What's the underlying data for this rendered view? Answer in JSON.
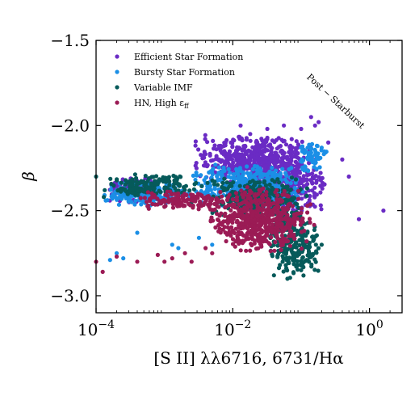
{
  "chart_data": {
    "type": "scatter",
    "xlabel": "[S II] λλ6716, 6731/Hα",
    "ylabel": "β",
    "xscale": "log",
    "xlim": [
      0.0001,
      3
    ],
    "ylim": [
      -3.1,
      -1.5
    ],
    "x_ticks": [
      {
        "value": 0.0001,
        "base": "10",
        "exp": "−4"
      },
      {
        "value": 0.01,
        "base": "10",
        "exp": "−2"
      },
      {
        "value": 1,
        "base": "10",
        "exp": "0"
      }
    ],
    "y_ticks": [
      {
        "value": -1.5,
        "label": "−1.5"
      },
      {
        "value": -2.0,
        "label": "−2.0"
      },
      {
        "value": -2.5,
        "label": "−2.5"
      },
      {
        "value": -3.0,
        "label": "−3.0"
      }
    ],
    "legend_position": "top-left",
    "grid": false,
    "annotation": {
      "text": "Post − Starburst",
      "x": 0.3,
      "y": -1.87
    },
    "series": [
      {
        "name": "Efficient Star Formation",
        "legend_label": "Efficient Star Formation",
        "color": "#6a2bc4",
        "clusters": [
          {
            "x_log": [
              -3.9,
              -3.0
            ],
            "y": [
              -2.46,
              -2.3
            ],
            "n": 110
          },
          {
            "x_log": [
              -2.6,
              -0.8
            ],
            "y": [
              -2.35,
              -2.05
            ],
            "n": 520
          },
          {
            "x_log": [
              -1.7,
              -0.6
            ],
            "y": [
              -2.55,
              -2.15
            ],
            "n": 260
          }
        ],
        "points": [
          {
            "x": 0.0063,
            "y": -2.12
          },
          {
            "x": 0.013,
            "y": -2.0
          },
          {
            "x": 0.018,
            "y": -2.05
          },
          {
            "x": 0.032,
            "y": -2.02
          },
          {
            "x": 0.056,
            "y": -2.0
          },
          {
            "x": 0.1,
            "y": -2.02
          },
          {
            "x": 0.14,
            "y": -1.95
          },
          {
            "x": 0.16,
            "y": -2.0
          },
          {
            "x": 0.18,
            "y": -1.98
          },
          {
            "x": 0.25,
            "y": -2.1
          },
          {
            "x": 0.4,
            "y": -2.2
          },
          {
            "x": 0.5,
            "y": -2.3
          },
          {
            "x": 1.6,
            "y": -2.5
          },
          {
            "x": 0.7,
            "y": -2.55
          }
        ]
      },
      {
        "name": "Bursty Star Formation",
        "legend_label": "Bursty Star Formation",
        "color": "#1b8fe6",
        "clusters": [
          {
            "x_log": [
              -3.9,
              -2.6
            ],
            "y": [
              -2.48,
              -2.32
            ],
            "n": 200
          },
          {
            "x_log": [
              -2.6,
              -0.9
            ],
            "y": [
              -2.5,
              -2.22
            ],
            "n": 480
          },
          {
            "x_log": [
              -1.1,
              -0.6
            ],
            "y": [
              -2.28,
              -2.08
            ],
            "n": 60
          }
        ],
        "points": [
          {
            "x": 0.00016,
            "y": -2.79
          },
          {
            "x": 0.0002,
            "y": -2.75
          },
          {
            "x": 0.00025,
            "y": -2.78
          },
          {
            "x": 0.0004,
            "y": -2.63
          },
          {
            "x": 0.0013,
            "y": -2.7
          },
          {
            "x": 0.0016,
            "y": -2.72
          },
          {
            "x": 0.0032,
            "y": -2.66
          },
          {
            "x": 0.005,
            "y": -2.7
          },
          {
            "x": 0.1,
            "y": -2.13
          },
          {
            "x": 0.14,
            "y": -2.14
          },
          {
            "x": 0.2,
            "y": -2.13
          }
        ]
      },
      {
        "name": "Variable IMF",
        "legend_label": "Variable IMF",
        "color": "#065a5a",
        "clusters": [
          {
            "x_log": [
              -3.9,
              -2.4
            ],
            "y": [
              -2.42,
              -2.28
            ],
            "n": 160
          },
          {
            "x_log": [
              -2.4,
              -0.9
            ],
            "y": [
              -2.55,
              -2.3
            ],
            "n": 300
          },
          {
            "x_log": [
              -1.5,
              -0.7
            ],
            "y": [
              -2.9,
              -2.5
            ],
            "n": 240
          }
        ],
        "points": [
          {
            "x": 0.0001,
            "y": -2.3
          },
          {
            "x": 0.00013,
            "y": -2.42
          },
          {
            "x": 0.0025,
            "y": -2.45
          },
          {
            "x": 0.04,
            "y": -2.88
          },
          {
            "x": 0.063,
            "y": -2.9
          },
          {
            "x": 0.1,
            "y": -2.85
          },
          {
            "x": 0.13,
            "y": -2.8
          },
          {
            "x": 0.2,
            "y": -2.7
          }
        ]
      },
      {
        "name": "HN, High ε_ff",
        "legend_label": "HN, High ε",
        "legend_sub": "ff",
        "color": "#9b1b55",
        "clusters": [
          {
            "x_log": [
              -3.5,
              -2.0
            ],
            "y": [
              -2.5,
              -2.38
            ],
            "n": 140
          },
          {
            "x_log": [
              -2.4,
              -0.8
            ],
            "y": [
              -2.75,
              -2.35
            ],
            "n": 560
          }
        ],
        "points": [
          {
            "x": 0.0001,
            "y": -2.8
          },
          {
            "x": 0.000125,
            "y": -2.86
          },
          {
            "x": 0.0002,
            "y": -2.77
          },
          {
            "x": 0.0004,
            "y": -2.8
          },
          {
            "x": 0.0008,
            "y": -2.76
          },
          {
            "x": 0.001,
            "y": -2.8
          },
          {
            "x": 0.0013,
            "y": -2.78
          },
          {
            "x": 0.002,
            "y": -2.75
          },
          {
            "x": 0.0025,
            "y": -2.8
          },
          {
            "x": 0.004,
            "y": -2.72
          },
          {
            "x": 0.005,
            "y": -2.75
          },
          {
            "x": 0.008,
            "y": -2.68
          }
        ]
      }
    ]
  }
}
